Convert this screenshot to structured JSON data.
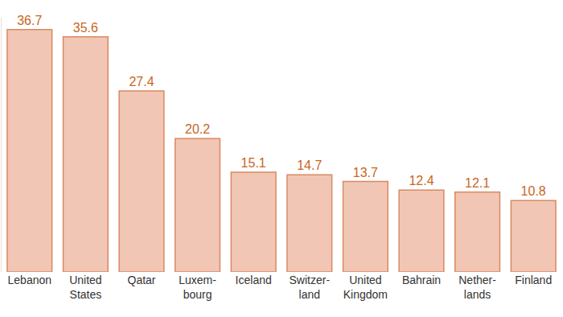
{
  "chart_data": {
    "type": "bar",
    "categories": [
      "Lebanon",
      "United States",
      "Qatar",
      "Luxem-bourg",
      "Iceland",
      "Switzer-land",
      "United Kingdom",
      "Bahrain",
      "Nether-lands",
      "Finland"
    ],
    "values": [
      36.7,
      35.6,
      27.4,
      20.2,
      15.1,
      14.7,
      13.7,
      12.4,
      12.1,
      10.8
    ],
    "color": "#f2c6b4",
    "ylim": [
      0,
      38.5
    ],
    "yticks": [],
    "grid": false,
    "data_labels": true,
    "tick_labels": "x"
  }
}
